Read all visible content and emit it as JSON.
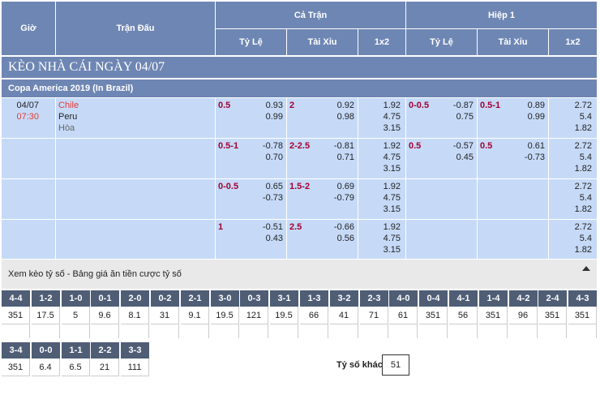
{
  "header": {
    "time": "Giờ",
    "match": "Trận Đấu",
    "fulltime": "Cả Trận",
    "firsthalf": "Hiệp 1",
    "ft_cols": [
      "Tỷ Lệ",
      "Tài Xỉu",
      "1x2"
    ],
    "h1_cols": [
      "Tỷ Lệ",
      "Tài Xỉu",
      "1x2"
    ]
  },
  "day_title": "KÈO NHÀ CÁI NGÀY 04/07",
  "league": "Copa America 2019 (In Brazil)",
  "match": {
    "date": "04/07",
    "time": "07:30",
    "home": "Chile",
    "away": "Peru",
    "draw": "Hòa"
  },
  "rows": [
    {
      "ft_hdp": "0.5",
      "ft_hdp_odds": [
        "0.93",
        "0.99"
      ],
      "ft_ou": "2",
      "ft_ou_odds": [
        "0.92",
        "0.98"
      ],
      "ft_1x2": [
        "1.92",
        "4.75",
        "3.15"
      ],
      "h1_hdp": "0-0.5",
      "h1_hdp_odds": [
        "-0.87",
        "0.75"
      ],
      "h1_ou": "0.5-1",
      "h1_ou_odds": [
        "0.89",
        "0.99"
      ],
      "h1_1x2": [
        "2.72",
        "5.4",
        "1.82"
      ]
    },
    {
      "ft_hdp": "0.5-1",
      "ft_hdp_odds": [
        "-0.78",
        "0.70"
      ],
      "ft_ou": "2-2.5",
      "ft_ou_odds": [
        "-0.81",
        "0.71"
      ],
      "ft_1x2": [
        "1.92",
        "4.75",
        "3.15"
      ],
      "h1_hdp": "0.5",
      "h1_hdp_odds": [
        "-0.57",
        "0.45"
      ],
      "h1_ou": "0.5",
      "h1_ou_odds": [
        "0.61",
        "-0.73"
      ],
      "h1_1x2": [
        "2.72",
        "5.4",
        "1.82"
      ]
    },
    {
      "ft_hdp": "0-0.5",
      "ft_hdp_odds": [
        "0.65",
        "-0.73"
      ],
      "ft_ou": "1.5-2",
      "ft_ou_odds": [
        "0.69",
        "-0.79"
      ],
      "ft_1x2": [
        "1.92",
        "4.75",
        "3.15"
      ],
      "h1_hdp": "",
      "h1_hdp_odds": [
        "",
        ""
      ],
      "h1_ou": "",
      "h1_ou_odds": [
        "",
        ""
      ],
      "h1_1x2": [
        "2.72",
        "5.4",
        "1.82"
      ]
    },
    {
      "ft_hdp": "1",
      "ft_hdp_odds": [
        "-0.51",
        "0.43"
      ],
      "ft_ou": "2.5",
      "ft_ou_odds": [
        "-0.66",
        "0.56"
      ],
      "ft_1x2": [
        "1.92",
        "4.75",
        "3.15"
      ],
      "h1_hdp": "",
      "h1_hdp_odds": [
        "",
        ""
      ],
      "h1_ou": "",
      "h1_ou_odds": [
        "",
        ""
      ],
      "h1_1x2": [
        "2.72",
        "5.4",
        "1.82"
      ]
    }
  ],
  "correct_score": {
    "title": "Xem kèo tỷ số - Bảng giá ăn tiền cược tỷ số",
    "row1": [
      {
        "score": "4-4",
        "odds": "351"
      },
      {
        "score": "1-2",
        "odds": "17.5"
      },
      {
        "score": "1-0",
        "odds": "5"
      },
      {
        "score": "0-1",
        "odds": "9.6"
      },
      {
        "score": "2-0",
        "odds": "8.1"
      },
      {
        "score": "0-2",
        "odds": "31"
      },
      {
        "score": "2-1",
        "odds": "9.1"
      },
      {
        "score": "3-0",
        "odds": "19.5"
      },
      {
        "score": "0-3",
        "odds": "121"
      },
      {
        "score": "3-1",
        "odds": "19.5"
      },
      {
        "score": "1-3",
        "odds": "66"
      },
      {
        "score": "3-2",
        "odds": "41"
      },
      {
        "score": "2-3",
        "odds": "71"
      },
      {
        "score": "4-0",
        "odds": "61"
      },
      {
        "score": "0-4",
        "odds": "351"
      },
      {
        "score": "4-1",
        "odds": "56"
      },
      {
        "score": "1-4",
        "odds": "351"
      },
      {
        "score": "4-2",
        "odds": "96"
      },
      {
        "score": "2-4",
        "odds": "351"
      },
      {
        "score": "4-3",
        "odds": "351"
      }
    ],
    "row2": [
      {
        "score": "3-4",
        "odds": "351"
      },
      {
        "score": "0-0",
        "odds": "6.4"
      },
      {
        "score": "1-1",
        "odds": "6.5"
      },
      {
        "score": "2-2",
        "odds": "21"
      },
      {
        "score": "3-3",
        "odds": "111"
      }
    ],
    "other_label": "Tỷ số khác",
    "other_odds": "51"
  },
  "colors": {
    "header_bg": "#6e86b3",
    "row_bg": "#c6daf8",
    "score_label_bg": "#4f5d75",
    "handicap_text": "#a3002f",
    "home_team_text": "#e53935"
  },
  "icons": {
    "collapse": "caret-up-icon"
  }
}
